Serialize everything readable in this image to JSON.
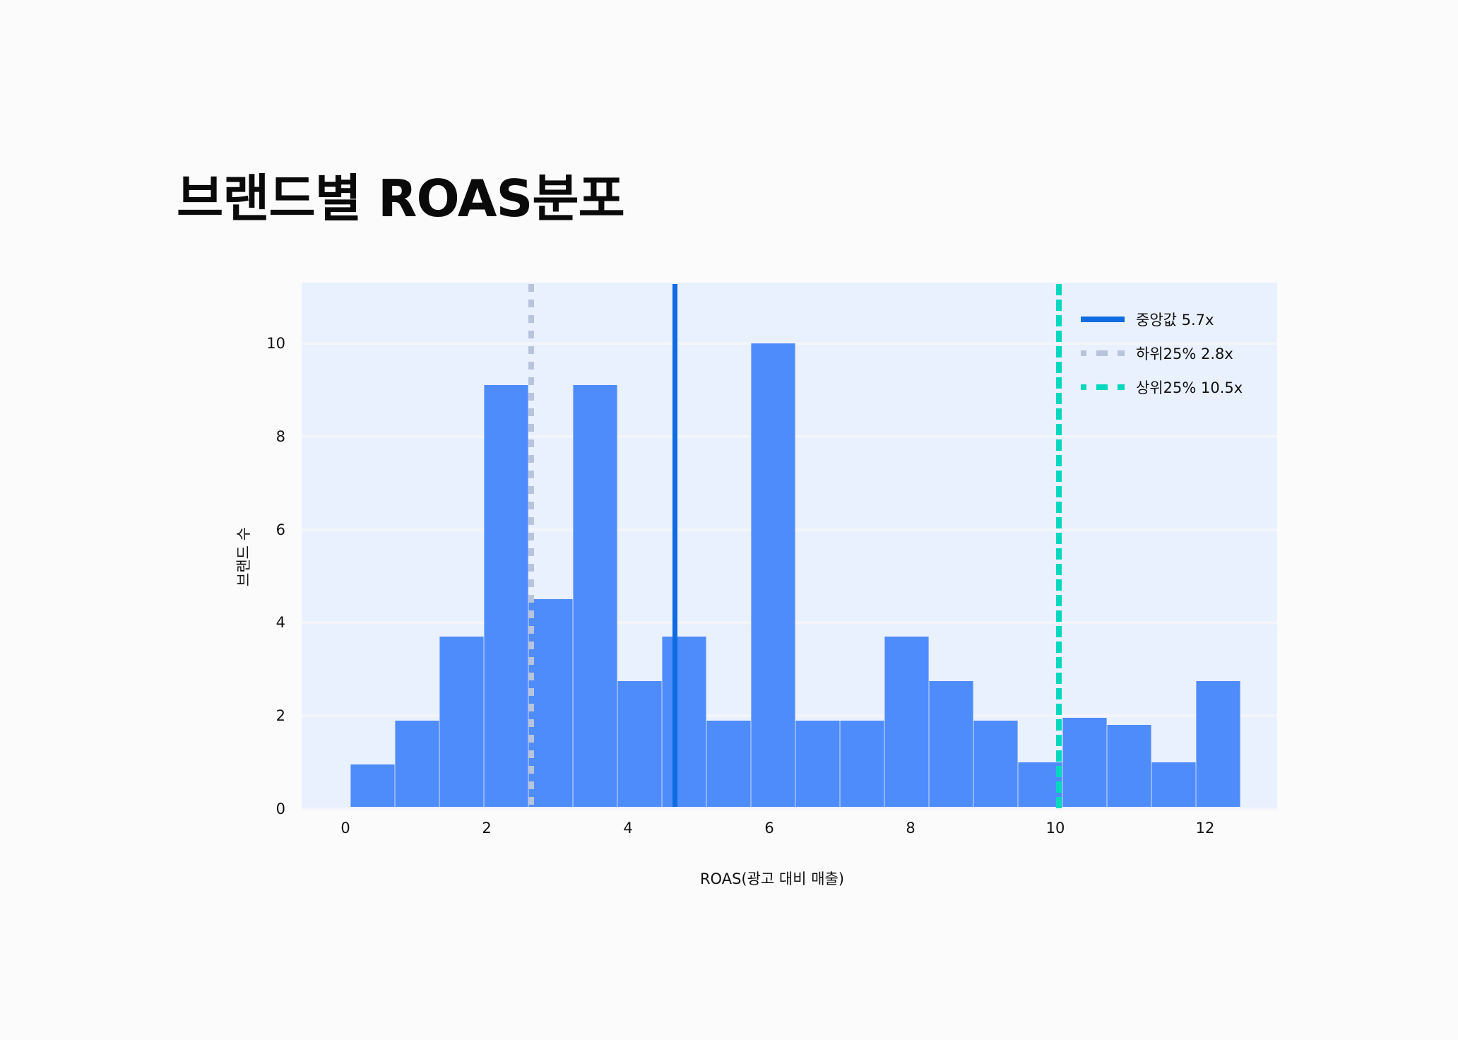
{
  "title": "브랜드별 ROAS분포",
  "colors": {
    "background": "#fbfbfb",
    "plot_background": "#e9f0fe",
    "bar": "#4f8cfb",
    "median_line": "#0f6be0",
    "lower_quartile_line": "#b8c4dc",
    "upper_quartile_line": "#06d8c0"
  },
  "axes": {
    "xlabel": "ROAS(광고 대비 매출)",
    "ylabel": "브랜드 수",
    "xticks": [
      "0",
      "2",
      "4",
      "6",
      "8",
      "10",
      "12"
    ],
    "yticks": [
      "0",
      "2",
      "4",
      "6",
      "8",
      "10"
    ]
  },
  "legend": {
    "items": [
      {
        "label": "중앙값 5.7x",
        "style": "solid"
      },
      {
        "label": "하위25% 2.8x",
        "style": "dashed"
      },
      {
        "label": "상위25% 10.5x",
        "style": "dashed"
      }
    ]
  },
  "chart_data": {
    "type": "bar",
    "subtype": "histogram",
    "title": "브랜드별 ROAS분포",
    "xlabel": "ROAS(광고 대비 매출)",
    "ylabel": "브랜드 수",
    "xlim": [
      -0.6,
      13.2
    ],
    "ylim": [
      0,
      11.3
    ],
    "xticks": [
      0,
      2,
      4,
      6,
      8,
      10,
      12
    ],
    "yticks": [
      0,
      2,
      4,
      6,
      8,
      10
    ],
    "grid": {
      "y": true,
      "x": false
    },
    "legend_position": "upper right",
    "bins": [
      {
        "x0": 0.1,
        "x1": 0.73,
        "count": 0.95
      },
      {
        "x0": 0.73,
        "x1": 1.36,
        "count": 1.9
      },
      {
        "x0": 1.36,
        "x1": 1.99,
        "count": 3.7
      },
      {
        "x0": 1.99,
        "x1": 2.62,
        "count": 9.1
      },
      {
        "x0": 2.62,
        "x1": 3.25,
        "count": 4.5
      },
      {
        "x0": 3.25,
        "x1": 3.88,
        "count": 9.1
      },
      {
        "x0": 3.88,
        "x1": 4.51,
        "count": 2.75
      },
      {
        "x0": 4.51,
        "x1": 5.14,
        "count": 3.7
      },
      {
        "x0": 5.14,
        "x1": 5.77,
        "count": 1.9
      },
      {
        "x0": 5.77,
        "x1": 6.4,
        "count": 10.0
      },
      {
        "x0": 6.4,
        "x1": 7.03,
        "count": 1.9
      },
      {
        "x0": 7.03,
        "x1": 7.66,
        "count": 1.9
      },
      {
        "x0": 7.66,
        "x1": 8.29,
        "count": 3.7
      },
      {
        "x0": 8.29,
        "x1": 8.92,
        "count": 2.75
      },
      {
        "x0": 8.92,
        "x1": 9.55,
        "count": 1.9
      },
      {
        "x0": 9.55,
        "x1": 10.18,
        "count": 1.0
      },
      {
        "x0": 10.18,
        "x1": 10.81,
        "count": 1.95
      },
      {
        "x0": 10.81,
        "x1": 11.44,
        "count": 1.8
      },
      {
        "x0": 11.44,
        "x1": 12.07,
        "count": 1.0
      },
      {
        "x0": 12.07,
        "x1": 12.7,
        "count": 2.75
      }
    ],
    "values": [
      0.95,
      1.9,
      3.7,
      9.1,
      4.5,
      9.1,
      2.75,
      3.7,
      1.9,
      10.0,
      1.9,
      1.9,
      3.7,
      2.75,
      1.9,
      1.0,
      1.95,
      1.8,
      1.0,
      2.75
    ],
    "reference_lines": [
      {
        "name": "중앙값",
        "label": "중앙값 5.7x",
        "value": 5.7,
        "drawn_at_x": 4.7,
        "style": "solid",
        "color": "#0f6be0"
      },
      {
        "name": "하위25%",
        "label": "하위25% 2.8x",
        "value": 2.8,
        "drawn_at_x": 2.6,
        "style": "dashed",
        "color": "#b8c4dc"
      },
      {
        "name": "상위25%",
        "label": "상위25% 10.5x",
        "value": 10.5,
        "drawn_at_x": 10.05,
        "style": "dashed",
        "color": "#06d8c0"
      }
    ]
  }
}
